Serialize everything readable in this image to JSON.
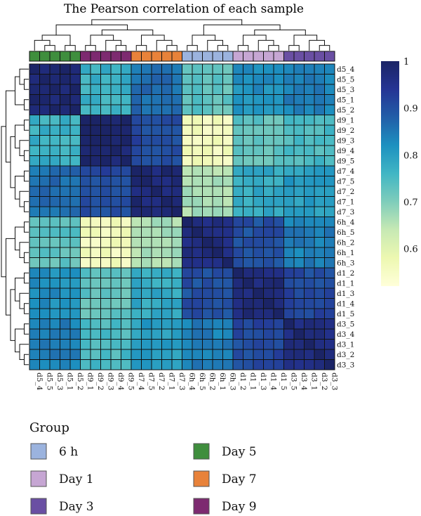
{
  "chart_data": {
    "type": "heatmap",
    "title": "The Pearson correlation of each sample",
    "rows": [
      "d5_4",
      "d5_5",
      "d5_3",
      "d5_1",
      "d5_2",
      "d9_1",
      "d9_2",
      "d9_3",
      "d9_4",
      "d9_5",
      "d7_4",
      "d7_5",
      "d7_2",
      "d7_1",
      "d7_3",
      "6h_4",
      "6h_5",
      "6h_2",
      "6h_1",
      "6h_3",
      "d1_2",
      "d1_1",
      "d1_3",
      "d1_4",
      "d1_5",
      "d3_5",
      "d3_4",
      "d3_1",
      "d3_2",
      "d3_3"
    ],
    "columns": [
      "d5_4",
      "d5_5",
      "d5_3",
      "d5_1",
      "d5_2",
      "d9_1",
      "d9_2",
      "d9_3",
      "d9_4",
      "d9_5",
      "d7_4",
      "d7_5",
      "d7_2",
      "d7_1",
      "d7_3",
      "6h_4",
      "6h_5",
      "6h_2",
      "6h_1",
      "6h_3",
      "d1_2",
      "d1_1",
      "d1_3",
      "d1_4",
      "d1_5",
      "d3_5",
      "d3_4",
      "d3_1",
      "d3_2",
      "d3_3"
    ],
    "column_groups": [
      "Day 5",
      "Day 5",
      "Day 5",
      "Day 5",
      "Day 5",
      "Day 9",
      "Day 9",
      "Day 9",
      "Day 9",
      "Day 9",
      "Day 7",
      "Day 7",
      "Day 7",
      "Day 7",
      "Day 7",
      "6 h",
      "6 h",
      "6 h",
      "6 h",
      "6 h",
      "Day 1",
      "Day 1",
      "Day 1",
      "Day 1",
      "Day 1",
      "Day 3",
      "Day 3",
      "Day 3",
      "Day 3",
      "Day 3"
    ],
    "group_blocks": [
      "D5",
      "D9",
      "D7",
      "H6",
      "D1",
      "D3"
    ],
    "block_order": [
      "D5",
      "D9",
      "D7",
      "H6",
      "D1",
      "D3"
    ],
    "block_correlation": {
      "D5": {
        "D5": 0.99,
        "D9": 0.77,
        "D7": 0.86,
        "H6": 0.73,
        "D1": 0.82,
        "D3": 0.84
      },
      "D9": {
        "D5": 0.77,
        "D9": 0.99,
        "D7": 0.91,
        "H6": 0.56,
        "D1": 0.73,
        "D3": 0.75
      },
      "D7": {
        "D5": 0.86,
        "D9": 0.91,
        "D7": 0.98,
        "H6": 0.66,
        "D1": 0.78,
        "D3": 0.8
      },
      "H6": {
        "D5": 0.73,
        "D9": 0.56,
        "D7": 0.66,
        "H6": 0.97,
        "D1": 0.9,
        "D3": 0.84
      },
      "D1": {
        "D5": 0.82,
        "D9": 0.73,
        "D7": 0.78,
        "H6": 0.9,
        "D1": 0.97,
        "D3": 0.91
      },
      "D3": {
        "D5": 0.84,
        "D9": 0.75,
        "D7": 0.8,
        "H6": 0.84,
        "D1": 0.91,
        "D3": 0.97
      }
    },
    "colorbar": {
      "range": [
        0.52,
        1.0
      ],
      "ticks": [
        1,
        0.9,
        0.8,
        0.7,
        0.6
      ],
      "tick_labels": [
        "1",
        "0.9",
        "0.8",
        "0.7",
        "0.6"
      ],
      "colors": [
        "#ffffd9",
        "#edf8b1",
        "#c7e9b4",
        "#7fcdbb",
        "#41b6c4",
        "#1d91c0",
        "#225ea8",
        "#253494",
        "#1b2466"
      ]
    },
    "legend": {
      "title": "Group",
      "placement": "bottom-left",
      "items": [
        {
          "label": "6 h",
          "color": "#9bb3de"
        },
        {
          "label": "Day 5",
          "color": "#3f8e3d"
        },
        {
          "label": "Day 1",
          "color": "#c6a6d3"
        },
        {
          "label": "Day 7",
          "color": "#e8823a"
        },
        {
          "label": "Day 3",
          "color": "#6a4fa3"
        },
        {
          "label": "Day 9",
          "color": "#7d2a70"
        }
      ]
    },
    "dendrogram": "hierarchical clustering on rows and columns",
    "grid": true
  }
}
